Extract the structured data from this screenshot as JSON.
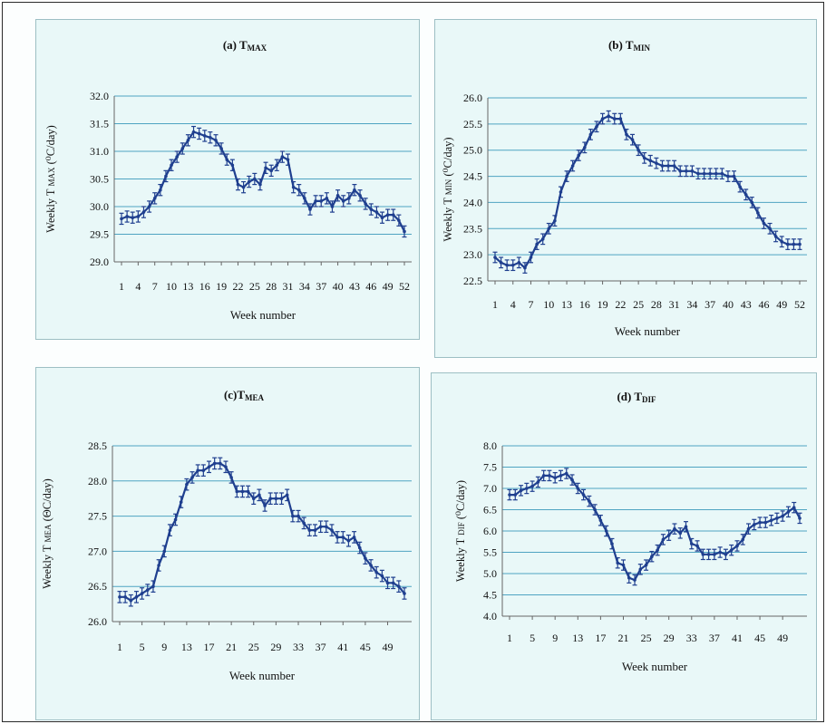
{
  "panels": [
    {
      "id": "a",
      "title": "(a) T",
      "title_sub": "MAX",
      "ylabel": "Weekly T",
      "ylabel_sub": "MAX",
      "ylabel_unit": " (⁰C/day)",
      "xlabel": "Week number"
    },
    {
      "id": "b",
      "title": "(b) T",
      "title_sub": "MIN",
      "ylabel": "Weekly T",
      "ylabel_sub": "MIN",
      "ylabel_unit": " (⁰C/day)",
      "xlabel": "Week number"
    },
    {
      "id": "c",
      "title": "(c)T",
      "title_sub": "MEA",
      "ylabel": "Weekly T",
      "ylabel_sub": "MEA",
      "ylabel_unit": " (ΘC/day)",
      "xlabel": "Week number"
    },
    {
      "id": "d",
      "title": "(d) T",
      "title_sub": "DIF",
      "ylabel": "Weekly T",
      "ylabel_sub": "DIF",
      "ylabel_unit": " (⁰C/day)",
      "xlabel": "Week number"
    }
  ],
  "chart_data": [
    {
      "type": "line",
      "title": "(a) TMAX",
      "xlabel": "Week number",
      "ylabel": "Weekly TMAX (⁰C/day)",
      "x": [
        1,
        2,
        3,
        4,
        5,
        6,
        7,
        8,
        9,
        10,
        11,
        12,
        13,
        14,
        15,
        16,
        17,
        18,
        19,
        20,
        21,
        22,
        23,
        24,
        25,
        26,
        27,
        28,
        29,
        30,
        31,
        32,
        33,
        34,
        35,
        36,
        37,
        38,
        39,
        40,
        41,
        42,
        43,
        44,
        45,
        46,
        47,
        48,
        49,
        50,
        51,
        52
      ],
      "x_tick_labels": [
        "1",
        "4",
        "7",
        "10",
        "13",
        "16",
        "19",
        "22",
        "25",
        "28",
        "31",
        "34",
        "37",
        "40",
        "43",
        "46",
        "49",
        "52"
      ],
      "x_tick_values": [
        1,
        4,
        7,
        10,
        13,
        16,
        19,
        22,
        25,
        28,
        31,
        34,
        37,
        40,
        43,
        46,
        49,
        52
      ],
      "ylim": [
        29.0,
        32.0
      ],
      "y_ticks": [
        "29.0",
        "29.5",
        "30.0",
        "30.5",
        "31.0",
        "31.5",
        "32.0"
      ],
      "grid": "horizontal",
      "series": [
        {
          "values": [
            29.78,
            29.82,
            29.8,
            29.82,
            29.9,
            30.0,
            30.15,
            30.3,
            30.55,
            30.75,
            30.9,
            31.05,
            31.2,
            31.35,
            31.32,
            31.28,
            31.25,
            31.2,
            31.05,
            30.85,
            30.75,
            30.4,
            30.35,
            30.45,
            30.5,
            30.4,
            30.7,
            30.65,
            30.75,
            30.9,
            30.85,
            30.35,
            30.3,
            30.15,
            29.95,
            30.1,
            30.1,
            30.15,
            30.0,
            30.2,
            30.1,
            30.15,
            30.3,
            30.2,
            30.05,
            29.95,
            29.9,
            29.8,
            29.85,
            29.85,
            29.75,
            29.55
          ],
          "error": 0.1
        }
      ]
    },
    {
      "type": "line",
      "title": "(b) TMIN",
      "xlabel": "Week number",
      "ylabel": "Weekly TMIN (⁰C/day)",
      "x": [
        1,
        2,
        3,
        4,
        5,
        6,
        7,
        8,
        9,
        10,
        11,
        12,
        13,
        14,
        15,
        16,
        17,
        18,
        19,
        20,
        21,
        22,
        23,
        24,
        25,
        26,
        27,
        28,
        29,
        30,
        31,
        32,
        33,
        34,
        35,
        36,
        37,
        38,
        39,
        40,
        41,
        42,
        43,
        44,
        45,
        46,
        47,
        48,
        49,
        50,
        51,
        52
      ],
      "x_tick_labels": [
        "1",
        "4",
        "7",
        "10",
        "13",
        "16",
        "19",
        "22",
        "25",
        "28",
        "31",
        "34",
        "37",
        "40",
        "43",
        "46",
        "49",
        "52"
      ],
      "x_tick_values": [
        1,
        4,
        7,
        10,
        13,
        16,
        19,
        22,
        25,
        28,
        31,
        34,
        37,
        40,
        43,
        46,
        49,
        52
      ],
      "ylim": [
        22.5,
        26.0
      ],
      "y_ticks": [
        "22.5",
        "23.0",
        "23.5",
        "24.0",
        "24.5",
        "25.0",
        "25.5",
        "26.0"
      ],
      "grid": "horizontal",
      "series": [
        {
          "values": [
            22.95,
            22.85,
            22.8,
            22.8,
            22.85,
            22.75,
            22.95,
            23.2,
            23.3,
            23.5,
            23.65,
            24.2,
            24.5,
            24.7,
            24.9,
            25.05,
            25.3,
            25.45,
            25.6,
            25.65,
            25.6,
            25.6,
            25.3,
            25.2,
            25.0,
            24.85,
            24.8,
            24.75,
            24.7,
            24.7,
            24.7,
            24.6,
            24.6,
            24.6,
            24.55,
            24.55,
            24.55,
            24.55,
            24.55,
            24.5,
            24.5,
            24.3,
            24.15,
            24.0,
            23.8,
            23.6,
            23.5,
            23.35,
            23.25,
            23.2,
            23.2,
            23.2
          ],
          "error": 0.1
        }
      ]
    },
    {
      "type": "line",
      "title": "(c)TMEA",
      "xlabel": "Week number",
      "ylabel": "Weekly TMEA (ΘC/day)",
      "x": [
        1,
        2,
        3,
        4,
        5,
        6,
        7,
        8,
        9,
        10,
        11,
        12,
        13,
        14,
        15,
        16,
        17,
        18,
        19,
        20,
        21,
        22,
        23,
        24,
        25,
        26,
        27,
        28,
        29,
        30,
        31,
        32,
        33,
        34,
        35,
        36,
        37,
        38,
        39,
        40,
        41,
        42,
        43,
        44,
        45,
        46,
        47,
        48,
        49,
        50,
        51,
        52
      ],
      "x_tick_labels": [
        "1",
        "5",
        "9",
        "13",
        "17",
        "21",
        "25",
        "29",
        "33",
        "37",
        "41",
        "45",
        "49"
      ],
      "x_tick_values": [
        1,
        5,
        9,
        13,
        17,
        21,
        25,
        29,
        33,
        37,
        41,
        45,
        49
      ],
      "ylim": [
        26.0,
        28.5
      ],
      "y_ticks": [
        "26.0",
        "26.5",
        "27.0",
        "27.5",
        "28.0",
        "28.5"
      ],
      "grid": "horizontal",
      "series": [
        {
          "values": [
            26.35,
            26.35,
            26.3,
            26.35,
            26.4,
            26.45,
            26.5,
            26.8,
            27.0,
            27.3,
            27.45,
            27.7,
            27.95,
            28.05,
            28.15,
            28.15,
            28.2,
            28.25,
            28.25,
            28.2,
            28.05,
            27.85,
            27.85,
            27.85,
            27.75,
            27.8,
            27.65,
            27.75,
            27.75,
            27.75,
            27.8,
            27.5,
            27.5,
            27.4,
            27.3,
            27.3,
            27.35,
            27.35,
            27.3,
            27.2,
            27.2,
            27.15,
            27.2,
            27.05,
            26.9,
            26.8,
            26.7,
            26.65,
            26.55,
            26.55,
            26.5,
            26.4
          ],
          "error": 0.08
        }
      ]
    },
    {
      "type": "line",
      "title": "(d) TDIF",
      "xlabel": "Week number",
      "ylabel": "Weekly TDIF (⁰C/day)",
      "x": [
        1,
        2,
        3,
        4,
        5,
        6,
        7,
        8,
        9,
        10,
        11,
        12,
        13,
        14,
        15,
        16,
        17,
        18,
        19,
        20,
        21,
        22,
        23,
        24,
        25,
        26,
        27,
        28,
        29,
        30,
        31,
        32,
        33,
        34,
        35,
        36,
        37,
        38,
        39,
        40,
        41,
        42,
        43,
        44,
        45,
        46,
        47,
        48,
        49,
        50,
        51,
        52
      ],
      "x_tick_labels": [
        "1",
        "5",
        "9",
        "13",
        "17",
        "21",
        "25",
        "29",
        "33",
        "37",
        "41",
        "45",
        "49"
      ],
      "x_tick_values": [
        1,
        5,
        9,
        13,
        17,
        21,
        25,
        29,
        33,
        37,
        41,
        45,
        49
      ],
      "ylim": [
        4.0,
        8.0
      ],
      "y_ticks": [
        "4.0",
        "4.5",
        "5.0",
        "5.5",
        "6.0",
        "6.5",
        "7.0",
        "7.5",
        "8.0"
      ],
      "grid": "horizontal",
      "series": [
        {
          "values": [
            6.85,
            6.85,
            6.95,
            7.0,
            7.05,
            7.15,
            7.3,
            7.3,
            7.25,
            7.3,
            7.35,
            7.2,
            7.0,
            6.85,
            6.7,
            6.5,
            6.25,
            6.0,
            5.7,
            5.25,
            5.2,
            4.9,
            4.85,
            5.1,
            5.2,
            5.4,
            5.55,
            5.8,
            5.9,
            6.05,
            5.95,
            6.1,
            5.7,
            5.65,
            5.45,
            5.45,
            5.45,
            5.5,
            5.45,
            5.55,
            5.65,
            5.8,
            6.05,
            6.15,
            6.2,
            6.2,
            6.25,
            6.3,
            6.35,
            6.45,
            6.55,
            6.3
          ],
          "error": 0.12
        }
      ]
    }
  ],
  "colors": {
    "line": "#1f3f8f",
    "grid": "#4fa4c2",
    "panel_bg": "#e9f8f8"
  }
}
